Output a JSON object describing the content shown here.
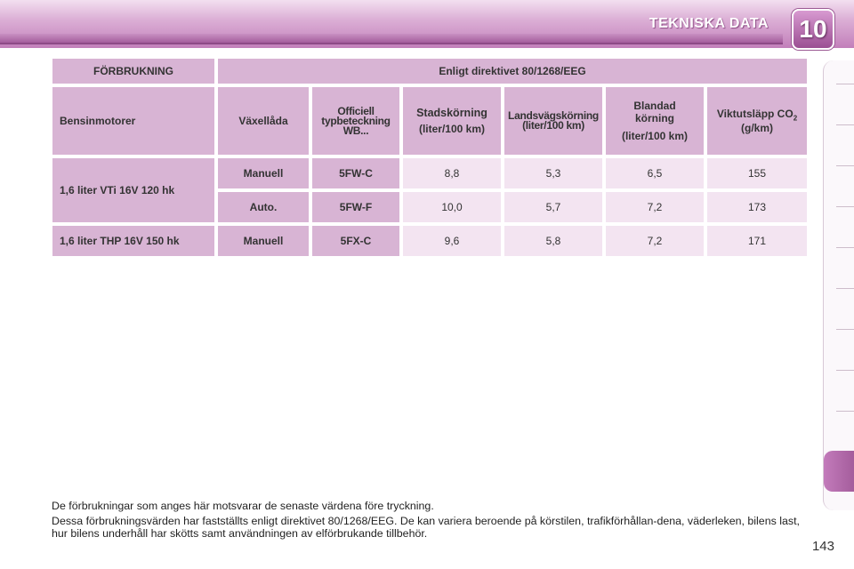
{
  "header": {
    "title": "TEKNISKA DATA",
    "chapter_number": "10"
  },
  "table": {
    "top_left": "FÖRBRUKNING",
    "top_right": "Enligt direktivet 80/1268/EEG",
    "columns": {
      "engine": "Bensinmotorer",
      "gearbox": "Växellåda",
      "type_code": "Officiell typbeteckning WB...",
      "urban": "Stadskörning",
      "urban_unit": "(liter/100 km)",
      "extra_urban": "Landsvägskörning",
      "extra_urban_unit": "(liter/100 km)",
      "combined": "Blandad körning",
      "combined_unit": "(liter/100 km)",
      "co2": "Viktutsläpp CO",
      "co2_sub": "2",
      "co2_unit": "(g/km)"
    },
    "rows": [
      {
        "engine": "1,6 liter VTi 16V 120 hk",
        "gearbox": "Manuell",
        "type": "5FW-C",
        "urban": "8,8",
        "extra": "5,3",
        "combined": "6,5",
        "co2": "155"
      },
      {
        "engine": "",
        "gearbox": "Auto.",
        "type": "5FW-F",
        "urban": "10,0",
        "extra": "5,7",
        "combined": "7,2",
        "co2": "173"
      },
      {
        "engine": "1,6 liter THP 16V 150 hk",
        "gearbox": "Manuell",
        "type": "5FX-C",
        "urban": "9,6",
        "extra": "5,8",
        "combined": "7,2",
        "co2": "171"
      }
    ]
  },
  "notes": [
    "De förbrukningar som anges här motsvarar de senaste värdena före tryckning.",
    "Dessa förbrukningsvärden har fastställts enligt direktivet 80/1268/EEG. De kan variera beroende på körstilen, trafikförhållan-dena, väderleken, bilens last, hur bilens underhåll har skötts samt användningen av elförbrukande tillbehör."
  ],
  "page_number": "143",
  "colors": {
    "accent": "#a45d9c",
    "header_cell": "#d8b4d4",
    "value_cell": "#f3e4f1"
  }
}
